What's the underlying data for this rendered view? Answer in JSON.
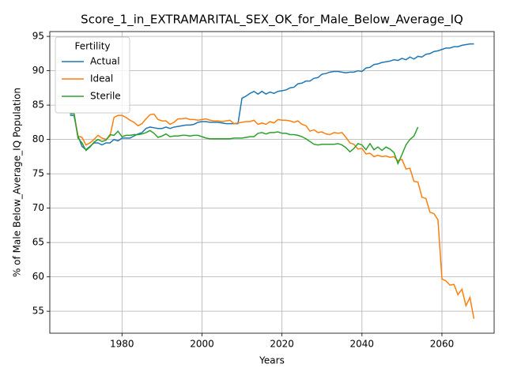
{
  "chart_data": {
    "type": "line",
    "title": "Score_1_in_EXTRAMARITAL_SEX_OK_for_Male_Below_Average_IQ",
    "xlabel": "Years",
    "ylabel": "% of Male Below_Average_IQ Population",
    "legend_title": "Fertility",
    "legend": "upper left",
    "grid": true,
    "x": [
      1967,
      1968,
      1969,
      1970,
      1971,
      1972,
      1973,
      1974,
      1975,
      1976,
      1977,
      1978,
      1979,
      1980,
      1981,
      1982,
      1983,
      1984,
      1985,
      1986,
      1987,
      1988,
      1989,
      1990,
      1991,
      1992,
      1993,
      1994,
      1995,
      1996,
      1997,
      1998,
      1999,
      2000,
      2001,
      2002,
      2003,
      2004,
      2005,
      2006,
      2007,
      2008,
      2009,
      2010,
      2011,
      2012,
      2013,
      2014,
      2015,
      2016,
      2017,
      2018,
      2019,
      2020,
      2021,
      2022,
      2023,
      2024,
      2025,
      2026,
      2027,
      2028,
      2029,
      2030,
      2031,
      2032,
      2033,
      2034,
      2035,
      2036,
      2037,
      2038,
      2039,
      2040,
      2041,
      2042,
      2043,
      2044,
      2045,
      2046,
      2047,
      2048,
      2049,
      2050,
      2051,
      2052,
      2053,
      2054,
      2055,
      2056,
      2057,
      2058,
      2059,
      2060,
      2061,
      2062,
      2063,
      2064,
      2065,
      2066,
      2067,
      2068
    ],
    "series": [
      {
        "name": "Actual",
        "color": "#1f77b4",
        "values": [
          83.5,
          83.5,
          80.5,
          79,
          78.5,
          79,
          79.5,
          79.5,
          79.2,
          79.5,
          79.5,
          80,
          79.8,
          80.2,
          80.2,
          80.2,
          80.5,
          80.8,
          81,
          81.6,
          81.8,
          81.7,
          81.6,
          81.6,
          81.8,
          81.6,
          81.8,
          81.9,
          82,
          82.1,
          82.1,
          82.2,
          82.5,
          82.6,
          82.6,
          82.5,
          82.5,
          82.5,
          82.4,
          82.3,
          82.3,
          82.3,
          82.3,
          86,
          86.3,
          86.7,
          87,
          86.6,
          87,
          86.6,
          86.9,
          86.7,
          87,
          87.1,
          87.2,
          87.5,
          87.6,
          88.1,
          88.2,
          88.5,
          88.5,
          88.9,
          89,
          89.5,
          89.6,
          89.8,
          89.9,
          89.9,
          89.8,
          89.7,
          89.8,
          89.8,
          90,
          89.9,
          90.4,
          90.5,
          90.9,
          91,
          91.2,
          91.3,
          91.4,
          91.6,
          91.5,
          91.8,
          91.6,
          92,
          91.7,
          92.1,
          92,
          92.4,
          92.5,
          92.8,
          92.9,
          93.1,
          93.3,
          93.3,
          93.5,
          93.5,
          93.7,
          93.8,
          93.9,
          93.9
        ]
      },
      {
        "name": "Ideal",
        "color": "#ff7f0e",
        "values": [
          83.8,
          83.8,
          80.5,
          80.3,
          79.2,
          79.5,
          80,
          80.6,
          80.2,
          80,
          80.5,
          83.2,
          83.5,
          83.5,
          83.2,
          82.8,
          82.5,
          82,
          82.3,
          83,
          83.6,
          83.7,
          82.9,
          82.7,
          82.7,
          82.2,
          82.5,
          83,
          83,
          83.1,
          82.9,
          82.9,
          82.8,
          82.9,
          83,
          82.8,
          82.7,
          82.7,
          82.6,
          82.7,
          82.8,
          82.3,
          82.4,
          82.5,
          82.6,
          82.6,
          82.8,
          82.2,
          82.4,
          82.2,
          82.6,
          82.4,
          82.9,
          82.8,
          82.8,
          82.7,
          82.5,
          82.7,
          82.2,
          82,
          81.2,
          81.4,
          81,
          81.1,
          80.8,
          80.7,
          81,
          80.9,
          81,
          80.3,
          79.5,
          79.3,
          78.6,
          78.7,
          77.9,
          78,
          77.5,
          77.7,
          77.5,
          77.6,
          77.4,
          77.5,
          76.9,
          77.1,
          75.7,
          75.8,
          73.9,
          73.8,
          71.6,
          71.4,
          69.4,
          69.2,
          68.3,
          59.7,
          59.4,
          58.8,
          58.9,
          57.4,
          58.2,
          55.8,
          57,
          53.9
        ]
      },
      {
        "name": "Sterile",
        "color": "#2ca02c",
        "values": [
          83.7,
          83.8,
          80.2,
          79.5,
          78.4,
          78.9,
          79.6,
          80,
          79.7,
          79.9,
          80.7,
          80.6,
          81.2,
          80.4,
          80.6,
          80.6,
          80.7,
          80.7,
          80.8,
          81,
          81.3,
          80.9,
          80.3,
          80.5,
          80.8,
          80.4,
          80.5,
          80.5,
          80.6,
          80.6,
          80.5,
          80.6,
          80.6,
          80.4,
          80.2,
          80.1,
          80.1,
          80.1,
          80.1,
          80.1,
          80.1,
          80.2,
          80.2,
          80.2,
          80.3,
          80.4,
          80.4,
          80.9,
          81,
          80.8,
          81,
          81,
          81.1,
          80.9,
          80.9,
          80.7,
          80.7,
          80.6,
          80.4,
          80.1,
          79.7,
          79.3,
          79.2,
          79.3,
          79.3,
          79.3,
          79.3,
          79.4,
          79.2,
          78.8,
          78.2,
          78.7,
          79.4,
          79.2,
          78.5,
          79.4,
          78.5,
          78.9,
          78.4,
          78.9,
          78.6,
          78.1,
          76.5,
          77.8,
          79.2,
          80,
          80.5,
          81.8,
          null,
          null,
          null,
          null,
          null,
          null,
          null,
          null,
          null,
          null,
          null,
          null,
          null,
          null
        ]
      }
    ],
    "xlim": [
      1961.95,
      2073.05
    ],
    "xticks": [
      1980,
      2000,
      2020,
      2040,
      2060
    ],
    "ylim": [
      51.8,
      95.7
    ],
    "yticks": [
      55,
      60,
      65,
      70,
      75,
      80,
      85,
      90,
      95
    ]
  }
}
